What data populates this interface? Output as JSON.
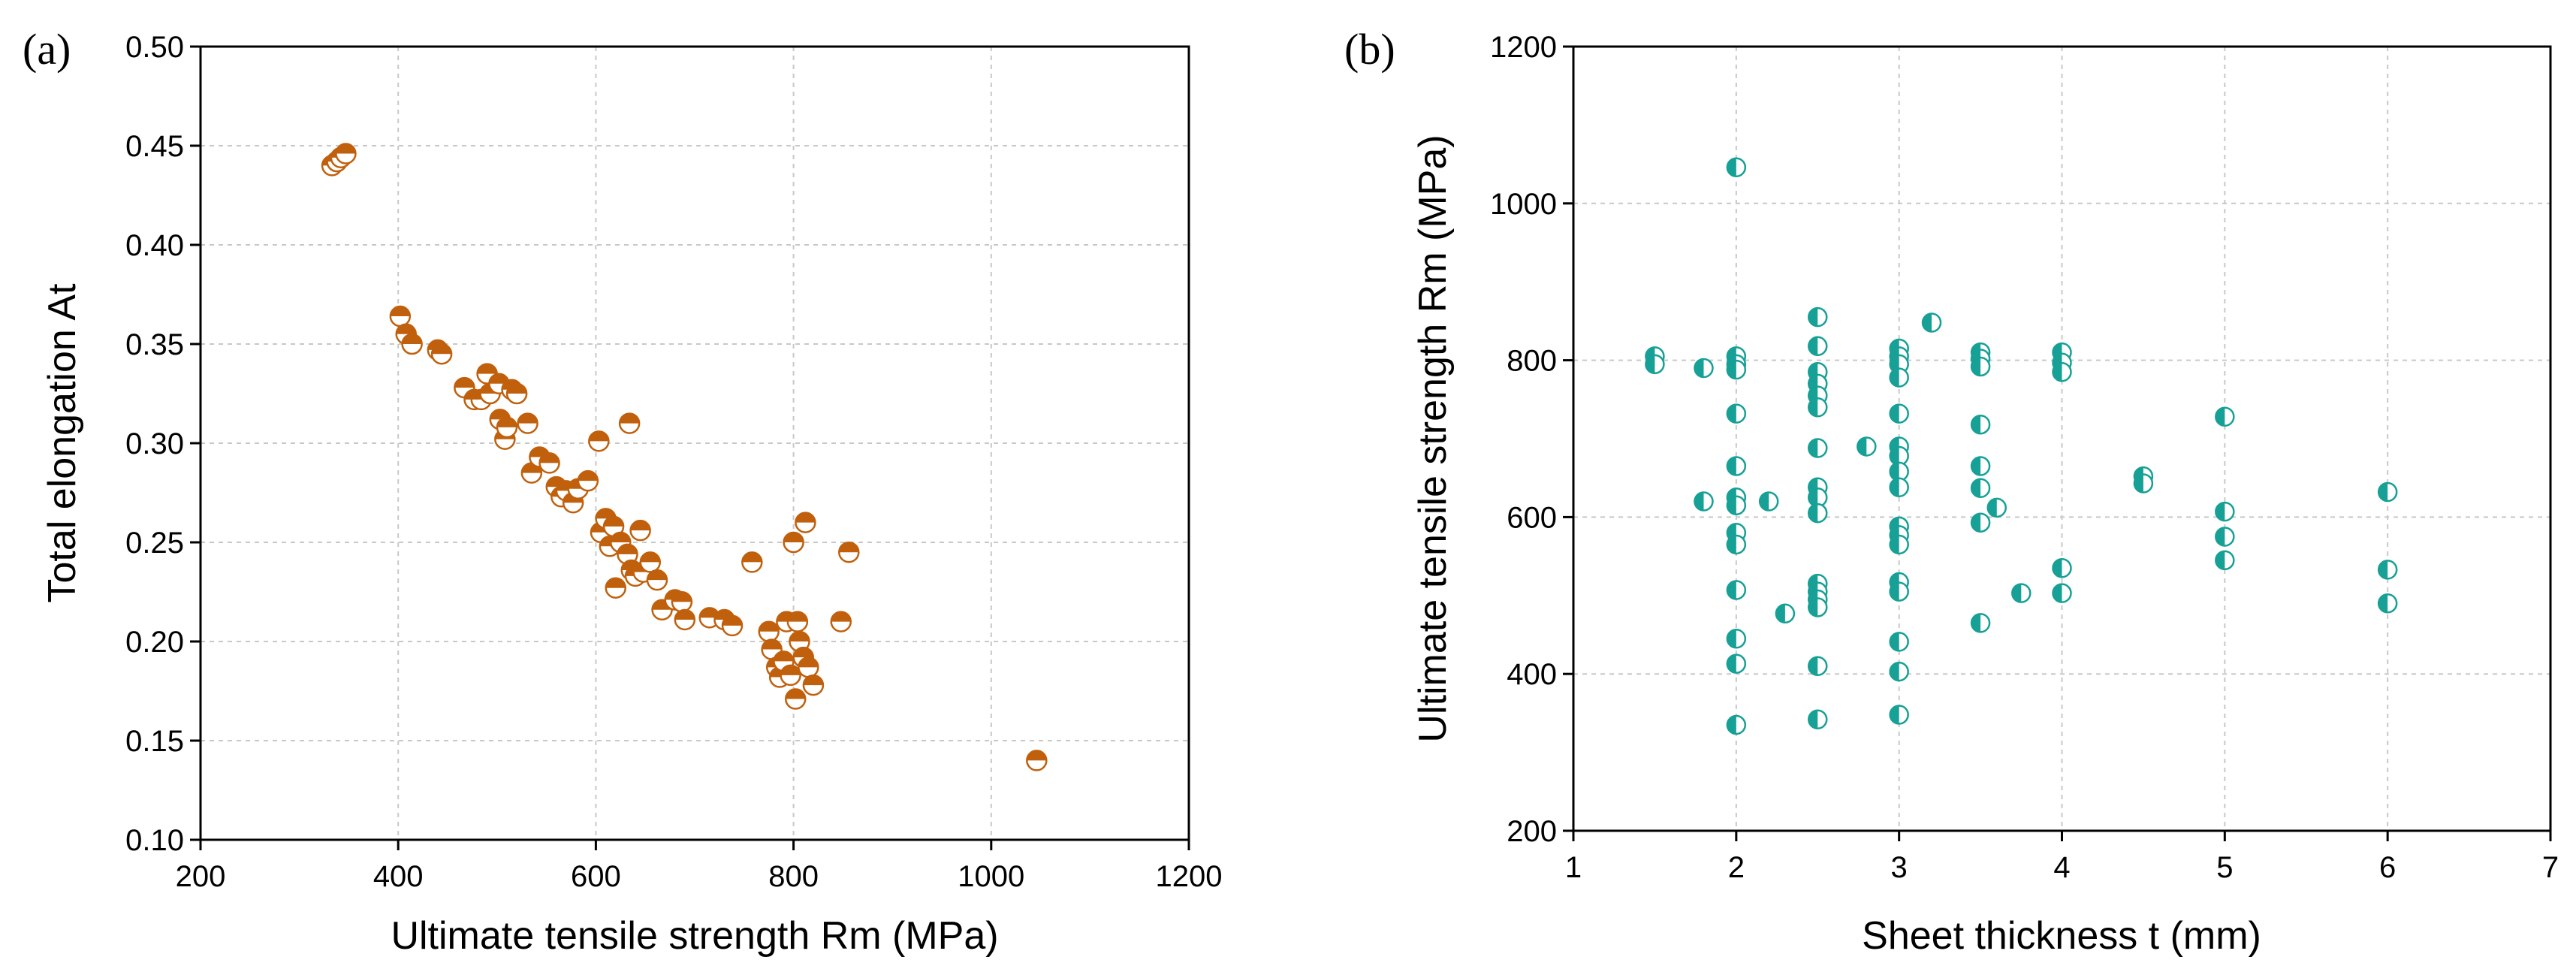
{
  "chart_data": [
    {
      "panel_label": "(a)",
      "type": "scatter",
      "xlabel": "Ultimate tensile strength Rm (MPa)",
      "ylabel": "Total elongation At",
      "xlim": [
        200,
        1200
      ],
      "ylim": [
        0.1,
        0.5
      ],
      "xticks": [
        "200",
        "400",
        "600",
        "800",
        "1000",
        "1200"
      ],
      "yticks": [
        "0.10",
        "0.15",
        "0.20",
        "0.25",
        "0.30",
        "0.35",
        "0.40",
        "0.45",
        "0.50"
      ],
      "grid": true,
      "marker_color": "#c0600c",
      "points": [
        [
          333,
          0.44
        ],
        [
          338,
          0.442
        ],
        [
          342,
          0.444
        ],
        [
          347,
          0.446
        ],
        [
          402,
          0.364
        ],
        [
          408,
          0.355
        ],
        [
          414,
          0.35
        ],
        [
          440,
          0.347
        ],
        [
          444,
          0.345
        ],
        [
          467,
          0.328
        ],
        [
          477,
          0.322
        ],
        [
          484,
          0.322
        ],
        [
          490,
          0.335
        ],
        [
          493,
          0.325
        ],
        [
          502,
          0.33
        ],
        [
          503,
          0.312
        ],
        [
          508,
          0.302
        ],
        [
          510,
          0.308
        ],
        [
          515,
          0.327
        ],
        [
          520,
          0.325
        ],
        [
          531,
          0.31
        ],
        [
          535,
          0.285
        ],
        [
          543,
          0.293
        ],
        [
          553,
          0.29
        ],
        [
          560,
          0.278
        ],
        [
          565,
          0.273
        ],
        [
          570,
          0.276
        ],
        [
          577,
          0.27
        ],
        [
          582,
          0.277
        ],
        [
          592,
          0.281
        ],
        [
          603,
          0.301
        ],
        [
          605,
          0.255
        ],
        [
          610,
          0.262
        ],
        [
          614,
          0.248
        ],
        [
          618,
          0.258
        ],
        [
          620,
          0.227
        ],
        [
          625,
          0.25
        ],
        [
          632,
          0.244
        ],
        [
          634,
          0.31
        ],
        [
          636,
          0.236
        ],
        [
          640,
          0.233
        ],
        [
          645,
          0.256
        ],
        [
          648,
          0.235
        ],
        [
          655,
          0.24
        ],
        [
          662,
          0.231
        ],
        [
          667,
          0.216
        ],
        [
          680,
          0.221
        ],
        [
          687,
          0.22
        ],
        [
          690,
          0.211
        ],
        [
          715,
          0.212
        ],
        [
          730,
          0.211
        ],
        [
          738,
          0.208
        ],
        [
          758,
          0.24
        ],
        [
          775,
          0.205
        ],
        [
          778,
          0.196
        ],
        [
          783,
          0.187
        ],
        [
          786,
          0.182
        ],
        [
          790,
          0.19
        ],
        [
          793,
          0.21
        ],
        [
          797,
          0.183
        ],
        [
          800,
          0.25
        ],
        [
          802,
          0.171
        ],
        [
          804,
          0.21
        ],
        [
          806,
          0.2
        ],
        [
          810,
          0.192
        ],
        [
          812,
          0.26
        ],
        [
          815,
          0.187
        ],
        [
          820,
          0.178
        ],
        [
          848,
          0.21
        ],
        [
          856,
          0.245
        ],
        [
          1046,
          0.14
        ]
      ]
    },
    {
      "panel_label": "(b)",
      "type": "scatter",
      "xlabel": "Sheet thickness t (mm)",
      "ylabel": "Ultimate tensile strength Rm (MPa)",
      "xlim": [
        1,
        7
      ],
      "ylim": [
        200,
        1200
      ],
      "xticks": [
        "1",
        "2",
        "3",
        "4",
        "5",
        "6",
        "7"
      ],
      "yticks": [
        "200",
        "400",
        "600",
        "800",
        "1000",
        "1200"
      ],
      "grid": true,
      "marker_color": "#16a096",
      "points": [
        [
          1.5,
          805
        ],
        [
          1.5,
          795
        ],
        [
          1.8,
          790
        ],
        [
          1.8,
          620
        ],
        [
          2.0,
          1046
        ],
        [
          2.0,
          805
        ],
        [
          2.0,
          795
        ],
        [
          2.0,
          788
        ],
        [
          2.0,
          732
        ],
        [
          2.0,
          665
        ],
        [
          2.0,
          625
        ],
        [
          2.0,
          615
        ],
        [
          2.0,
          580
        ],
        [
          2.0,
          565
        ],
        [
          2.0,
          507
        ],
        [
          2.0,
          445
        ],
        [
          2.0,
          413
        ],
        [
          2.0,
          335
        ],
        [
          2.2,
          620
        ],
        [
          2.3,
          477
        ],
        [
          2.5,
          855
        ],
        [
          2.5,
          818
        ],
        [
          2.5,
          785
        ],
        [
          2.5,
          770
        ],
        [
          2.5,
          755
        ],
        [
          2.5,
          740
        ],
        [
          2.5,
          688
        ],
        [
          2.5,
          638
        ],
        [
          2.5,
          625
        ],
        [
          2.5,
          605
        ],
        [
          2.5,
          515
        ],
        [
          2.5,
          505
        ],
        [
          2.5,
          495
        ],
        [
          2.5,
          485
        ],
        [
          2.5,
          410
        ],
        [
          2.5,
          342
        ],
        [
          2.8,
          690
        ],
        [
          3.0,
          815
        ],
        [
          3.0,
          805
        ],
        [
          3.0,
          795
        ],
        [
          3.0,
          778
        ],
        [
          3.0,
          732
        ],
        [
          3.0,
          690
        ],
        [
          3.0,
          678
        ],
        [
          3.0,
          658
        ],
        [
          3.0,
          638
        ],
        [
          3.0,
          588
        ],
        [
          3.0,
          577
        ],
        [
          3.0,
          565
        ],
        [
          3.0,
          517
        ],
        [
          3.0,
          505
        ],
        [
          3.0,
          441
        ],
        [
          3.0,
          403
        ],
        [
          3.0,
          348
        ],
        [
          3.2,
          848
        ],
        [
          3.5,
          810
        ],
        [
          3.5,
          802
        ],
        [
          3.5,
          792
        ],
        [
          3.5,
          718
        ],
        [
          3.5,
          665
        ],
        [
          3.5,
          637
        ],
        [
          3.5,
          593
        ],
        [
          3.5,
          465
        ],
        [
          3.6,
          612
        ],
        [
          3.75,
          503
        ],
        [
          4.0,
          810
        ],
        [
          4.0,
          797
        ],
        [
          4.0,
          785
        ],
        [
          4.0,
          535
        ],
        [
          4.0,
          503
        ],
        [
          4.5,
          652
        ],
        [
          4.5,
          643
        ],
        [
          5.0,
          728
        ],
        [
          5.0,
          607
        ],
        [
          5.0,
          575
        ],
        [
          5.0,
          545
        ],
        [
          6.0,
          632
        ],
        [
          6.0,
          533
        ],
        [
          6.0,
          490
        ]
      ]
    }
  ]
}
